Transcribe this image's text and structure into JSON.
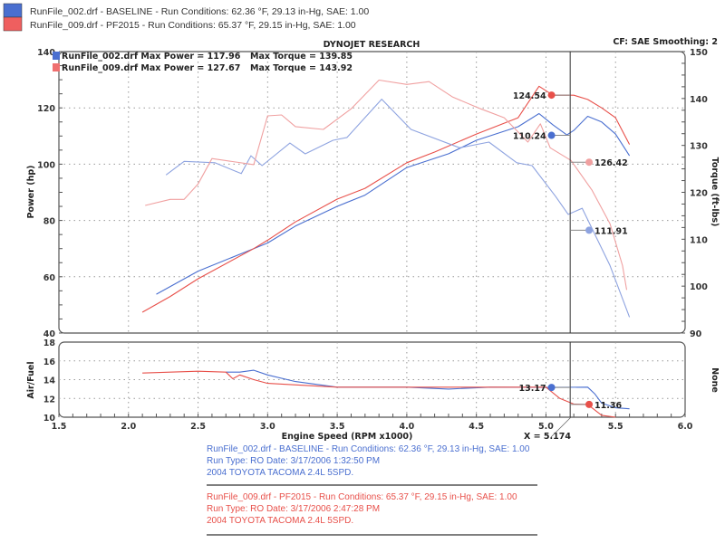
{
  "header": {
    "runs": [
      {
        "label": "RunFile_002.drf - BASELINE  -  Run Conditions: 62.36 °F, 29.13 in-Hg, SAE: 1.00",
        "color": "#4a6fd0"
      },
      {
        "label": "RunFile_009.drf - PF2015  -  Run Conditions: 65.37 °F, 29.15 in-Hg, SAE: 1.00",
        "color": "#e8504a"
      }
    ],
    "title": "DYNOJET RESEARCH",
    "settings": "CF: SAE  Smoothing: 2"
  },
  "max_legend": [
    {
      "power": "RunFile_002.drf Max Power = 117.96",
      "torque": "Max Torque = 139.85"
    },
    {
      "power": "RunFile_009.drf Max Power = 127.67",
      "torque": "Max Torque = 143.92"
    }
  ],
  "cursor_readout": "X = 5.174",
  "footer": [
    {
      "lines": [
        "RunFile_002.drf - BASELINE  -  Run Conditions: 62.36 °F, 29.13 in-Hg, SAE: 1.00",
        "Run Type: RO  Date: 3/17/2006 1:32:50 PM",
        "2004 TOYOTA TACOMA 2.4L 5SPD."
      ],
      "color": "#4a6fd0"
    },
    {
      "lines": [
        "RunFile_009.drf - PF2015  -  Run Conditions: 65.37 °F, 29.15 in-Hg, SAE: 1.00",
        "Run Type: RO  Date: 3/17/2006 2:47:28 PM",
        "2004 TOYOTA TACOMA 2.4L 5SPD."
      ],
      "color": "#e8504a"
    }
  ],
  "chart_data": [
    {
      "type": "line",
      "title": "DYNOJET RESEARCH",
      "xlabel": "Engine Speed (RPM x1000)",
      "ylabel": "Power (hp)",
      "y2label": "Torque (ft-lbs)",
      "xlim": [
        1.5,
        6.0
      ],
      "ylim": [
        40,
        140
      ],
      "y2lim": [
        90,
        150
      ],
      "xticks": [
        "1.5",
        "2.0",
        "2.5",
        "3.0",
        "3.5",
        "4.0",
        "4.5",
        "5.0",
        "5.5",
        "6.0"
      ],
      "yticks": [
        "40",
        "60",
        "80",
        "100",
        "120",
        "140"
      ],
      "y2ticks": [
        "90",
        "100",
        "110",
        "120",
        "130",
        "140",
        "150"
      ],
      "grid": true,
      "cursor_x": 5.174,
      "series": [
        {
          "name": "RunFile_002.drf Power",
          "axis": "left",
          "color": "#4a6fd0",
          "x": [
            2.2,
            2.5,
            2.9,
            3.0,
            3.2,
            3.5,
            3.7,
            4.0,
            4.3,
            4.5,
            4.8,
            4.95,
            5.05,
            5.15,
            5.2,
            5.3,
            5.4,
            5.5,
            5.6
          ],
          "y": [
            53.8,
            62,
            70,
            72,
            78,
            85,
            89,
            98.8,
            103.7,
            108.5,
            113.3,
            117.96,
            114,
            110.4,
            112,
            117,
            115,
            110.7,
            103
          ]
        },
        {
          "name": "RunFile_009.drf Power",
          "axis": "left",
          "color": "#e8504a",
          "x": [
            2.1,
            2.3,
            2.5,
            2.9,
            3.0,
            3.2,
            3.5,
            3.7,
            4.0,
            4.2,
            4.5,
            4.8,
            4.95,
            5.05,
            5.2,
            5.3,
            5.4,
            5.5,
            5.6
          ],
          "y": [
            47.4,
            53,
            59.3,
            70,
            73,
            79.5,
            87.6,
            91.4,
            100.5,
            104.3,
            110.7,
            116.5,
            127.67,
            124.5,
            124.5,
            123,
            120,
            116.5,
            107
          ]
        },
        {
          "name": "RunFile_002.drf Torque",
          "axis": "right",
          "color": "#8ea3e0",
          "x": [
            2.27,
            2.4,
            2.62,
            2.81,
            2.88,
            2.96,
            3.16,
            3.27,
            3.47,
            3.57,
            3.82,
            4.03,
            4.38,
            4.59,
            4.79,
            4.9,
            5.07,
            5.16,
            5.26,
            5.46,
            5.6
          ],
          "y": [
            123.7,
            126.6,
            126.3,
            124,
            127.8,
            125.7,
            130.5,
            128.2,
            131.1,
            131.7,
            139.85,
            133.4,
            129.5,
            130.7,
            126.3,
            125.7,
            119.1,
            115.3,
            116.6,
            104.4,
            93.4
          ]
        },
        {
          "name": "RunFile_009.drf Torque",
          "axis": "right",
          "color": "#f0a0a0",
          "x": [
            2.12,
            2.3,
            2.4,
            2.5,
            2.6,
            2.9,
            3.0,
            3.1,
            3.2,
            3.4,
            3.6,
            3.8,
            4.0,
            4.16,
            4.33,
            4.53,
            4.7,
            4.87,
            4.96,
            5.03,
            5.18,
            5.33,
            5.46,
            5.55,
            5.58
          ],
          "y": [
            117.2,
            118.5,
            118.5,
            121.8,
            127.2,
            125.9,
            136.3,
            136.5,
            134,
            133.4,
            137.8,
            143.92,
            143,
            143.6,
            140.3,
            137.8,
            135.9,
            130.7,
            134.6,
            129.5,
            126.8,
            120.5,
            113.3,
            104.4,
            99.2
          ]
        }
      ],
      "markers": [
        {
          "label": "124.54",
          "x": 5.04,
          "y": 124.54,
          "axis": "left",
          "color": "#e8504a",
          "side": "left"
        },
        {
          "label": "110.24",
          "x": 5.04,
          "y": 110.24,
          "axis": "left",
          "color": "#4a6fd0",
          "side": "left"
        },
        {
          "label": "126.42",
          "x": 5.31,
          "y": 126.42,
          "axis": "right",
          "color": "#f0a0a0",
          "side": "right"
        },
        {
          "label": "111.91",
          "x": 5.31,
          "y": 111.91,
          "axis": "right",
          "color": "#8ea3e0",
          "side": "right"
        }
      ]
    },
    {
      "type": "line",
      "ylabel": "Air/Fuel",
      "y2label": "None",
      "xlim": [
        1.5,
        6.0
      ],
      "ylim": [
        10,
        18
      ],
      "yticks": [
        "10",
        "12",
        "14",
        "16",
        "18"
      ],
      "grid": true,
      "series": [
        {
          "name": "RunFile_002.drf Air/Fuel",
          "color": "#4a6fd0",
          "x": [
            2.7,
            2.8,
            2.9,
            3.0,
            3.2,
            3.5,
            4.0,
            4.3,
            4.6,
            5.0,
            5.3,
            5.35,
            5.4,
            5.5,
            5.6
          ],
          "y": [
            14.8,
            14.8,
            15.0,
            14.5,
            13.8,
            13.2,
            13.2,
            13.0,
            13.2,
            13.17,
            13.2,
            12.5,
            11.5,
            11.0,
            10.9
          ]
        },
        {
          "name": "RunFile_009.drf Air/Fuel",
          "color": "#e8504a",
          "x": [
            2.1,
            2.3,
            2.5,
            2.7,
            2.75,
            2.8,
            2.9,
            3.0,
            3.5,
            4.0,
            4.5,
            5.0,
            5.1,
            5.2,
            5.3,
            5.4,
            5.5
          ],
          "y": [
            14.7,
            14.8,
            14.9,
            14.8,
            14.1,
            14.5,
            14.0,
            13.6,
            13.2,
            13.2,
            13.2,
            13.2,
            12.0,
            11.4,
            11.36,
            10.2,
            10.0
          ]
        }
      ],
      "markers": [
        {
          "label": "13.17",
          "x": 5.04,
          "y": 13.17,
          "color": "#4a6fd0",
          "side": "left"
        },
        {
          "label": "11.36",
          "x": 5.31,
          "y": 11.36,
          "color": "#e8504a",
          "side": "right"
        }
      ]
    }
  ]
}
